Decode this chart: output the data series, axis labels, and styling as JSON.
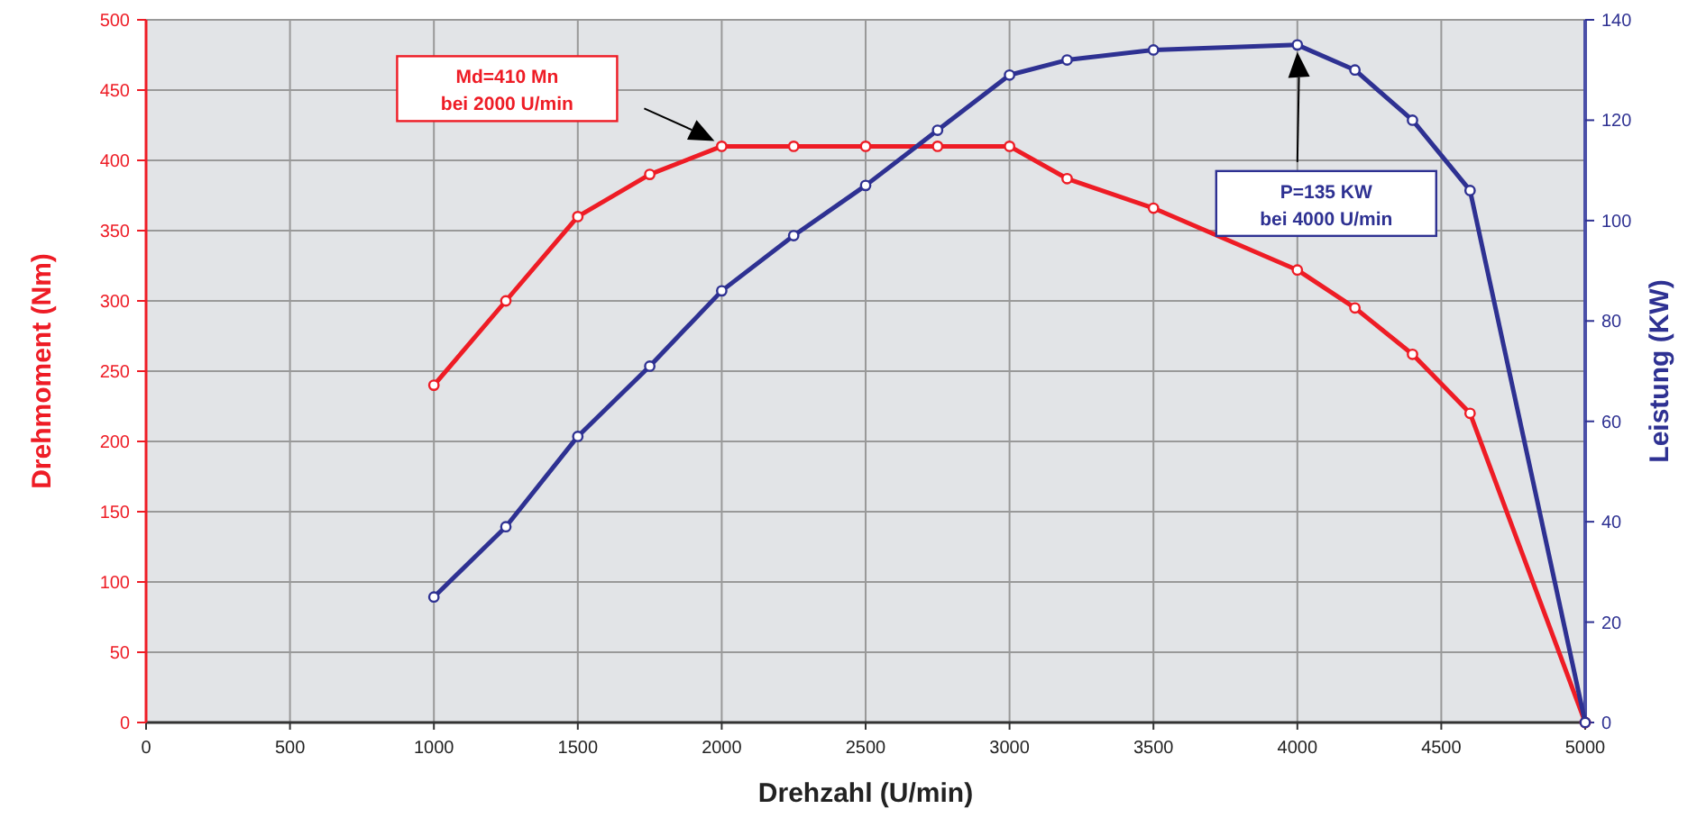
{
  "chart_data": {
    "type": "line",
    "xlabel": "Drehzahl (U/min)",
    "ylabel": "Drehmoment (Nm)",
    "y2label": "Leistung (KW)",
    "xlim": [
      0,
      5000
    ],
    "xticks": [
      0,
      500,
      1000,
      1500,
      2000,
      2500,
      3000,
      3500,
      4000,
      4500,
      5000
    ],
    "ylim": [
      0,
      500
    ],
    "yticks": [
      0,
      50,
      100,
      150,
      200,
      250,
      300,
      350,
      400,
      450,
      500
    ],
    "y2lim": [
      0,
      140
    ],
    "y2ticks": [
      0,
      20,
      40,
      60,
      80,
      100,
      120,
      140
    ],
    "grid": true,
    "marker": "circle",
    "line_style": "solid",
    "series": [
      {
        "color": "#ee1c25",
        "x": [
          1000,
          1250,
          1500,
          1750,
          2000,
          2250,
          2500,
          2750,
          3000,
          3200,
          3500,
          4000,
          4200,
          4400,
          4600,
          5000
        ],
        "values": [
          240,
          300,
          360,
          390,
          410,
          410,
          410,
          410,
          410,
          387,
          366,
          322,
          295,
          262,
          220,
          0
        ]
      },
      {
        "color": "#2e3192",
        "axis": "y2",
        "x": [
          1000,
          1250,
          1500,
          1750,
          2000,
          2250,
          2500,
          2750,
          3000,
          3200,
          3500,
          4000,
          4200,
          4400,
          4600,
          5000
        ],
        "values": [
          25,
          39,
          57,
          71,
          86,
          97,
          107,
          118,
          129,
          132,
          134,
          135,
          130,
          120,
          106,
          0
        ]
      }
    ],
    "annotations": [
      "Md=410 Mn\nbei 2000 U/min",
      "P=135 KW\nbei 4000 U/min"
    ]
  }
}
